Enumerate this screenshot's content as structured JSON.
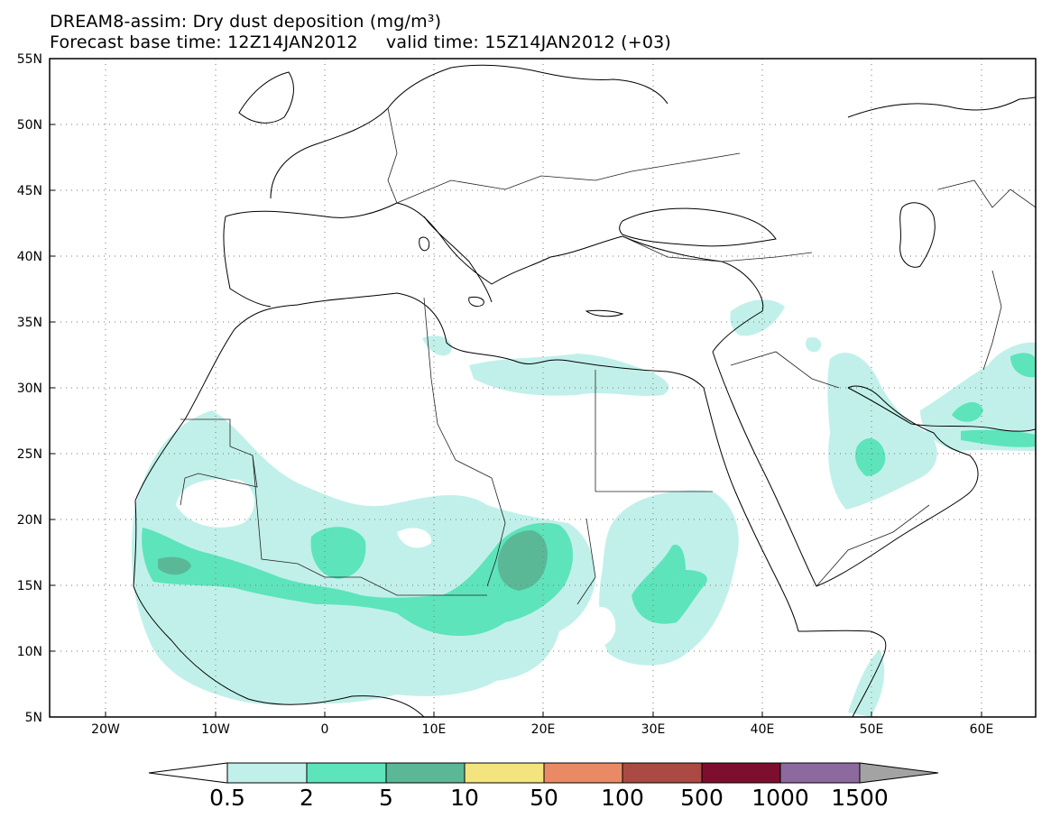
{
  "title": {
    "line1": "DREAM8-assim: Dry dust deposition (mg/m³)",
    "line2": "Forecast base time: 12Z14JAN2012     valid time: 15Z14JAN2012 (+03)"
  },
  "axes": {
    "lat_labels": [
      "55N",
      "50N",
      "45N",
      "40N",
      "35N",
      "30N",
      "25N",
      "20N",
      "15N",
      "10N",
      "5N"
    ],
    "lon_labels": [
      "20W",
      "10W",
      "0",
      "10E",
      "20E",
      "30E",
      "40E",
      "50E",
      "60E"
    ],
    "lon_range": [
      -25,
      65
    ],
    "lat_range": [
      5,
      55
    ],
    "grid": "dotted"
  },
  "legend": {
    "levels": [
      "0.5",
      "2",
      "5",
      "10",
      "50",
      "100",
      "500",
      "1000",
      "1500"
    ],
    "colors": [
      "#ffffff",
      "#c1f0ea",
      "#5de4bb",
      "#5bb897",
      "#f4e47d",
      "#ea8a65",
      "#ab4a42",
      "#7d0e2e",
      "#8c6a9e",
      "#a3a3a3"
    ]
  },
  "icons": [
    "map-outline-icon"
  ]
}
